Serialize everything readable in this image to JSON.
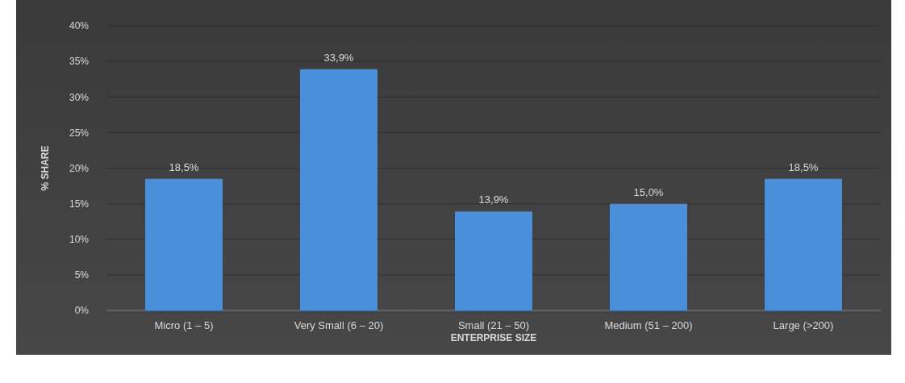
{
  "chart_data": {
    "type": "bar",
    "xlabel": "ENTERPRISE SIZE",
    "ylabel": "% SHARE",
    "categories": [
      "Micro (1 – 5)",
      "Very Small (6 – 20)",
      "Small (21 – 50)",
      "Medium (51 – 200)",
      "Large (>200)"
    ],
    "values": [
      18.5,
      33.9,
      13.9,
      15.0,
      18.5
    ],
    "value_labels": [
      "18,5%",
      "33,9%",
      "13,9%",
      "15,0%",
      "18,5%"
    ],
    "color": "#4a8fdb",
    "ylim": [
      0,
      40
    ],
    "yticks": [
      {
        "value": 0,
        "label": "0%"
      },
      {
        "value": 5,
        "label": "5%"
      },
      {
        "value": 10,
        "label": "10%"
      },
      {
        "value": 15,
        "label": "15%"
      },
      {
        "value": 20,
        "label": "20%"
      },
      {
        "value": 25,
        "label": "25%"
      },
      {
        "value": 30,
        "label": "30%"
      },
      {
        "value": 35,
        "label": "35%"
      },
      {
        "value": 40,
        "label": "40%"
      }
    ],
    "grid": "y"
  }
}
